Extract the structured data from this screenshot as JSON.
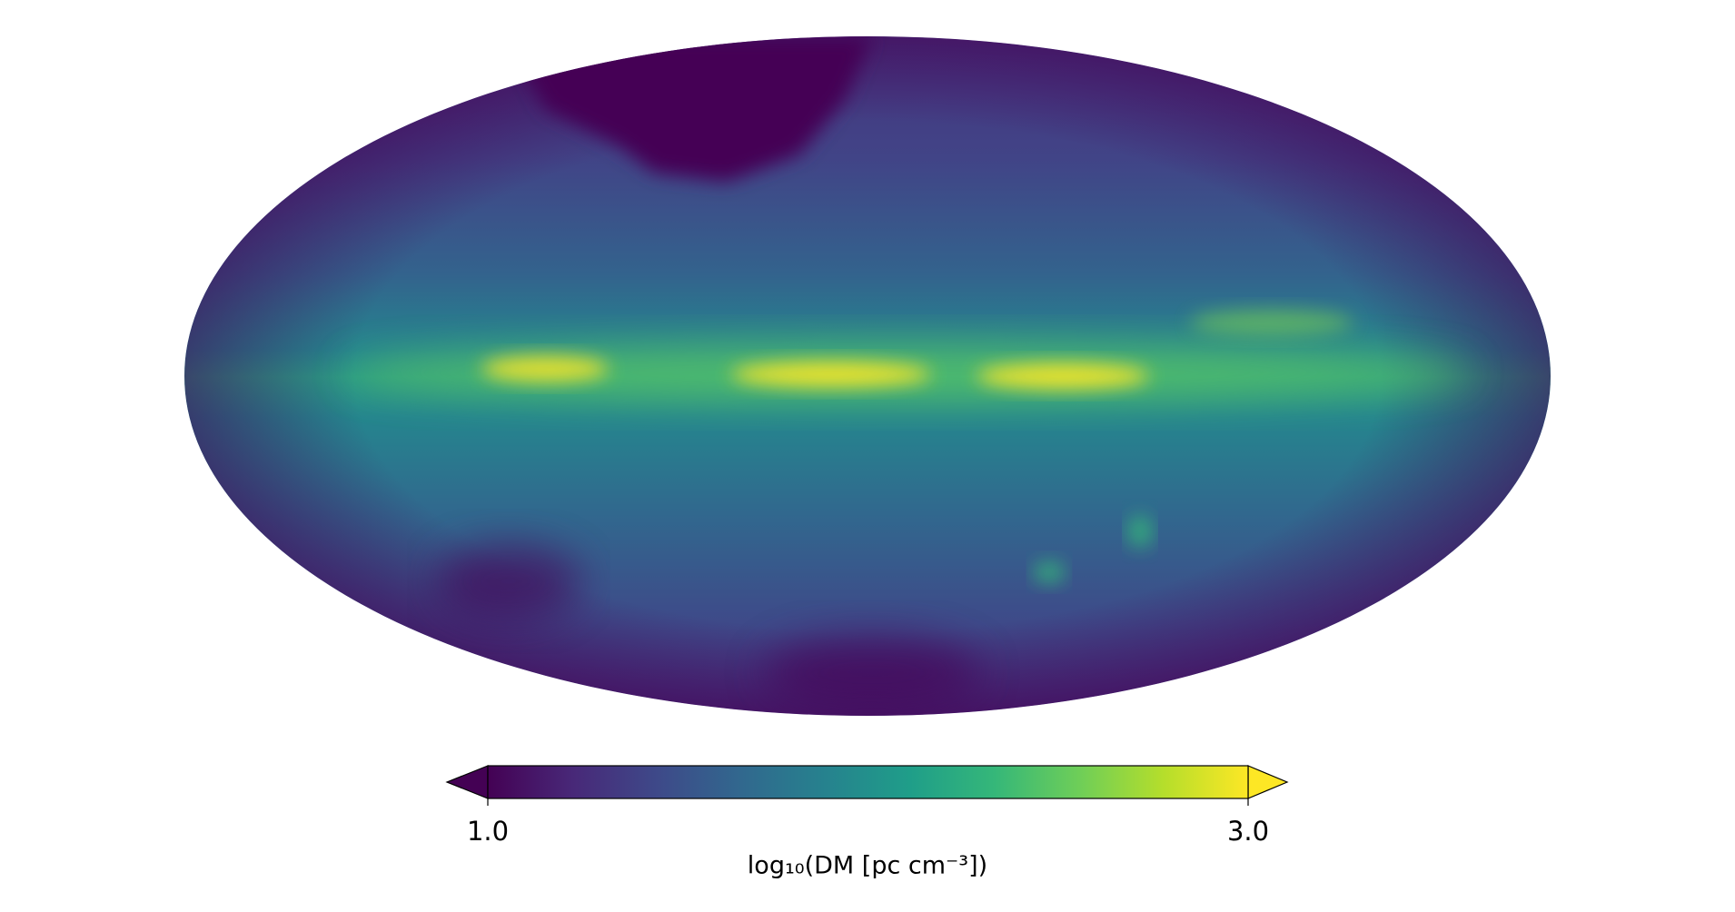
{
  "chart_data": {
    "type": "skymap",
    "projection": "mollweide",
    "colormap": "viridis",
    "extend": "both",
    "clim": [
      1.0,
      3.0
    ],
    "cticks": [
      {
        "value": 1.0,
        "label": "1.0"
      },
      {
        "value": 3.0,
        "label": "3.0"
      }
    ],
    "colorbar_label": "log₁₀(DM [pc cm⁻³])"
  }
}
